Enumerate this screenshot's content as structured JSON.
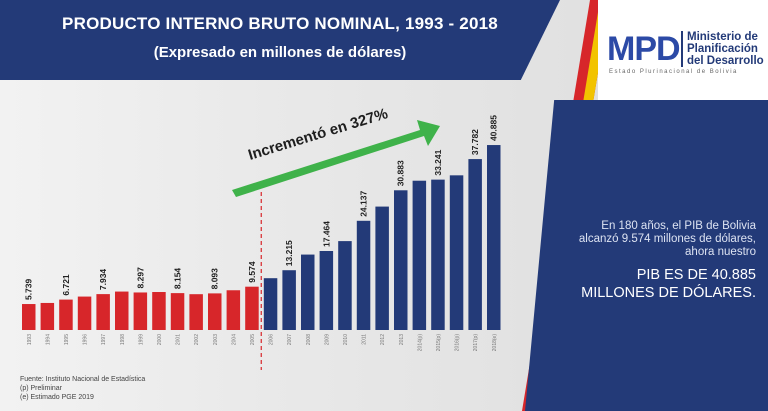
{
  "title": "PRODUCTO INTERNO BRUTO NOMINAL, 1993 - 2018",
  "subtitle": "(Expresado en millones de dólares)",
  "logo": {
    "mark": "MPD",
    "ministry_line1": "Ministerio de",
    "ministry_line2": "Planificación",
    "ministry_line3": "del Desarrollo",
    "state": "Estado Plurinacional de Bolivia"
  },
  "annotation": "Incrementó en 327%",
  "caption_small": "En 180 años, el PIB de Bolivia alcanzó 9.574 millones de dólares, ahora nuestro",
  "caption_big_line1": "PIB ES DE 40.885",
  "caption_big_line2": "MILLONES DE DÓLARES.",
  "source": {
    "line1": "Fuente: Instituto Nacional de Estadística",
    "line2": "(p) Preliminar",
    "line3": "(e) Estimado PGE 2019"
  },
  "colors": {
    "title_band": "#233a78",
    "red_bars": "#d7262a",
    "blue_bars": "#233a78",
    "arrow": "#3fb24a"
  },
  "chart_data": {
    "type": "bar",
    "title": "PRODUCTO INTERNO BRUTO NOMINAL, 1993 - 2018",
    "subtitle": "(Expresado en millones de dólares)",
    "categories": [
      "1993",
      "1994",
      "1995",
      "1996",
      "1997",
      "1998",
      "1999",
      "2000",
      "2001",
      "2002",
      "2003",
      "2004",
      "2005",
      "2006",
      "2007",
      "2008",
      "2009",
      "2010",
      "2011",
      "2012",
      "2013",
      "2014(p)",
      "2015(p)",
      "2016(p)",
      "2017(p)",
      "2018(e)"
    ],
    "values": [
      5739,
      5980,
      6721,
      7390,
      7934,
      8497,
      8297,
      8398,
      8154,
      7917,
      8093,
      8785,
      9574,
      11452,
      13215,
      16674,
      17464,
      19650,
      24137,
      27282,
      30883,
      33000,
      33241,
      34190,
      37782,
      40885
    ],
    "labels": {
      "1993": "5.739",
      "1995": "6.721",
      "1997": "7.934",
      "1999": "8.297",
      "2001": "8.154",
      "2003": "8.093",
      "2005": "9.574",
      "2007": "13.215",
      "2009": "17.464",
      "2011": "24.137",
      "2013": "30.883",
      "2015(p)": "33.241",
      "2017(p)": "37.782",
      "2018(e)": "40.885"
    },
    "xlabel": "",
    "ylabel": "",
    "ylim": [
      0,
      42000
    ],
    "grid": false,
    "split_after": "2005"
  }
}
